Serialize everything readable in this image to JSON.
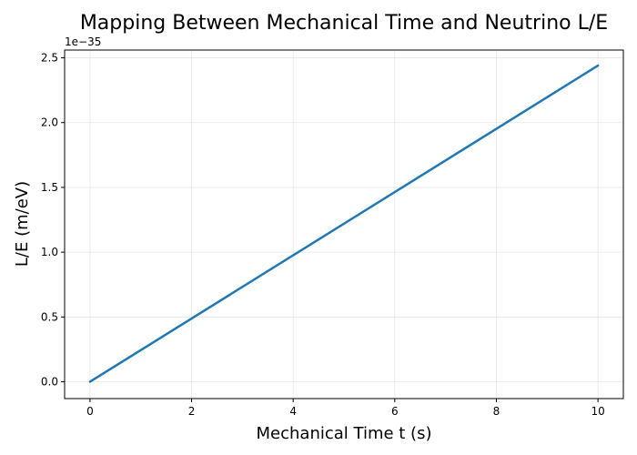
{
  "chart_data": {
    "type": "line",
    "title": "Mapping Between Mechanical Time and Neutrino L/E",
    "xlabel": "Mechanical Time t (s)",
    "ylabel": "L/E (m/eV)",
    "y_offset_text": "1e−35",
    "xlim": [
      -0.5,
      10.5
    ],
    "ylim": [
      -0.13,
      2.56
    ],
    "y_scale_note": "values shown in units of 1e-35",
    "xticks": [
      0,
      2,
      4,
      6,
      8,
      10
    ],
    "xtick_labels": [
      "0",
      "2",
      "4",
      "6",
      "8",
      "10"
    ],
    "yticks": [
      0.0,
      0.5,
      1.0,
      1.5,
      2.0,
      2.5
    ],
    "ytick_labels": [
      "0.0",
      "0.5",
      "1.0",
      "1.5",
      "2.0",
      "2.5"
    ],
    "grid": true,
    "series": [
      {
        "color": "#1f77b4",
        "x": [
          0,
          10
        ],
        "y": [
          0.0,
          2.44
        ]
      }
    ]
  }
}
